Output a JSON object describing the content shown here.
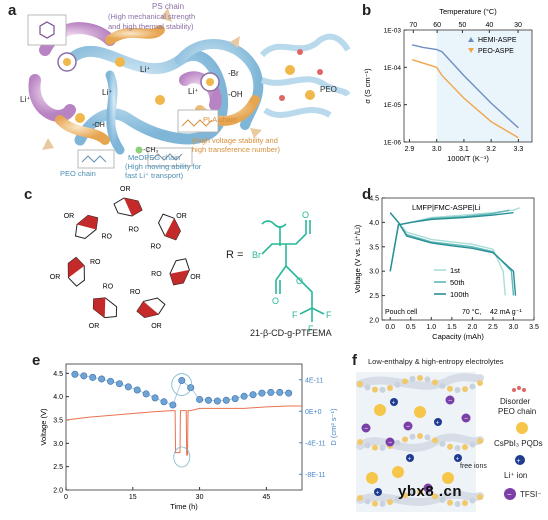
{
  "panels": {
    "a": {
      "letter": "a",
      "ps_chain": "PS chain",
      "ps_desc1": "(High mechanical strength",
      "ps_desc2": "and high thermal stability)",
      "pla_chain": "PLA chain",
      "pla_desc1": "(High voltage stability and",
      "pla_desc2": "high transference number)",
      "meopeg_chain": "MeOPEG chain",
      "meopeg_desc1": "(High moving ability for",
      "meopeg_desc2": "fast Li⁺ transport)",
      "peo_chain": "PEO chain",
      "peo_label": "PEO",
      "li_ion": "Li⁺",
      "br_label": "-Br",
      "oh_label": "-OH",
      "ch3_label": "-CH₃"
    },
    "b": {
      "letter": "b"
    },
    "c": {
      "letter": "c",
      "r_eq": "R =",
      "caption": "21-β-CD-g-PTFEMA",
      "or": "OR",
      "ro": "RO",
      "o": "O",
      "br": "Br",
      "f": "F"
    },
    "d": {
      "letter": "d"
    },
    "e": {
      "letter": "e"
    },
    "f": {
      "letter": "f",
      "title": "Low-enthalpy & high-entropy electrolytes",
      "legend": [
        "Disorder",
        "PEO chain",
        "CsPbI₃ PQDs",
        "Li⁺ ion",
        "TFSI⁻"
      ],
      "free_ions": "free ions"
    }
  },
  "watermark": "ybx8 .cn",
  "chart_data": [
    {
      "id": "b",
      "type": "line",
      "xlabel": "1000/T (K⁻¹)",
      "ylabel": "σ (S cm⁻¹)",
      "x2label": "Temperature (°C)",
      "xlim": [
        2.88,
        3.35
      ],
      "ylim_log10": [
        -6,
        -3
      ],
      "y_scale": "log",
      "xticks": [
        2.9,
        3.0,
        3.1,
        3.2,
        3.3
      ],
      "x2ticks": [
        70,
        60,
        50,
        40,
        30
      ],
      "yticks": [
        "1E-06",
        "1E-05",
        "1E-04",
        "1E-03"
      ],
      "legend": "top-right",
      "shaded_region": "1000/T > 3.0",
      "series": [
        {
          "name": "HEMI-ASPE",
          "color": "#6f8fc2",
          "marker": "triangle-up",
          "x": [
            2.91,
            2.95,
            3.0,
            3.02,
            3.1,
            3.2,
            3.3
          ],
          "y": [
            0.0004,
            0.00034,
            0.0003,
            0.00026,
            6e-05,
            1.1e-05,
            2.4e-06
          ]
        },
        {
          "name": "PEO-ASPE",
          "color": "#f0a54a",
          "marker": "triangle-down",
          "x": [
            2.91,
            2.95,
            3.0,
            3.02,
            3.1,
            3.2,
            3.3
          ],
          "y": [
            0.00016,
            0.00013,
            0.0001,
            6e-05,
            1.5e-05,
            3.5e-06,
            1.3e-06
          ]
        }
      ]
    },
    {
      "id": "d",
      "type": "line",
      "title": "LMFP|FMC-ASPE|Li",
      "xlabel": "Capacity (mAh)",
      "ylabel": "Voltage (V vs. Li⁺/Li)",
      "xlim": [
        -0.2,
        3.5
      ],
      "ylim": [
        2.0,
        4.5
      ],
      "xticks": [
        0.0,
        0.5,
        1.0,
        1.5,
        2.0,
        2.5,
        3.0,
        3.5
      ],
      "yticks": [
        2.0,
        2.5,
        3.0,
        3.5,
        4.0,
        4.5
      ],
      "annotations": [
        "Pouch cell",
        "70 °C,",
        "42 mA g⁻¹"
      ],
      "legend": "center-right",
      "series": [
        {
          "name": "1st",
          "color": "#a8ddd8",
          "charge_x": [
            0.0,
            0.2,
            0.5,
            1.0,
            1.8,
            2.5,
            3.0,
            3.15
          ],
          "charge_y": [
            3.0,
            3.95,
            4.0,
            4.1,
            4.15,
            4.2,
            4.25,
            4.3
          ],
          "discharge_x": [
            0.0,
            0.2,
            0.4,
            1.0,
            1.5,
            2.0,
            2.5,
            2.75,
            2.8
          ],
          "discharge_y": [
            4.2,
            4.0,
            3.8,
            3.65,
            3.6,
            3.55,
            3.45,
            3.0,
            2.5
          ]
        },
        {
          "name": "50th",
          "color": "#5fb8b8",
          "charge_x": [
            0.0,
            0.2,
            0.5,
            1.0,
            1.8,
            2.5,
            2.9
          ],
          "charge_y": [
            3.0,
            3.95,
            4.0,
            4.08,
            4.12,
            4.18,
            4.25
          ],
          "discharge_x": [
            0.0,
            0.2,
            0.4,
            1.0,
            1.5,
            2.0,
            2.5,
            2.95,
            3.0
          ],
          "discharge_y": [
            4.2,
            4.0,
            3.75,
            3.6,
            3.55,
            3.5,
            3.4,
            3.0,
            2.5
          ]
        },
        {
          "name": "100th",
          "color": "#2a8f95",
          "charge_x": [
            0.0,
            0.2,
            0.5,
            1.0,
            1.8,
            2.5,
            3.0
          ],
          "charge_y": [
            3.0,
            3.95,
            4.0,
            4.06,
            4.1,
            4.15,
            4.2
          ],
          "discharge_x": [
            0.0,
            0.2,
            0.4,
            1.0,
            1.5,
            2.0,
            2.5,
            3.0,
            3.05
          ],
          "discharge_y": [
            4.2,
            4.0,
            3.72,
            3.58,
            3.52,
            3.47,
            3.38,
            3.0,
            2.5
          ]
        }
      ]
    },
    {
      "id": "e",
      "type": "line",
      "xlabel": "Time (h)",
      "ylabel": "Voltage (V)",
      "y2label": "D (cm² s⁻¹)",
      "xlim": [
        0,
        53
      ],
      "ylim": [
        2.0,
        4.7
      ],
      "y2lim": [
        -1e-10,
        6e-11
      ],
      "xticks": [
        0,
        15,
        30,
        45
      ],
      "yticks": [
        2.0,
        2.5,
        3.0,
        3.5,
        4.0,
        4.5
      ],
      "y2ticks": [
        "-8E-11",
        "-4E-11",
        "0E+0",
        "4E-11"
      ],
      "series": [
        {
          "name": "Voltage",
          "axis": "left",
          "color": "#e8734f",
          "x": [
            0,
            5,
            10,
            15,
            20,
            24,
            24.5,
            24.6,
            25.6,
            25.7,
            27.0,
            27.1,
            27.3,
            27.4,
            28.0,
            30,
            35,
            40,
            45,
            50,
            53
          ],
          "y": [
            3.5,
            3.56,
            3.6,
            3.64,
            3.68,
            3.7,
            3.7,
            2.8,
            2.8,
            3.7,
            3.7,
            2.75,
            2.75,
            3.7,
            3.7,
            3.75,
            3.75,
            3.75,
            3.78,
            3.8,
            3.8
          ]
        },
        {
          "name": "D",
          "axis": "right",
          "color": "#6fa3d3",
          "marker": "circle",
          "x": [
            2,
            4,
            6,
            8,
            10,
            12,
            14,
            16,
            18,
            20,
            22,
            24,
            26,
            28,
            30,
            32,
            34,
            36,
            38,
            40,
            42,
            44,
            46,
            48,
            50
          ],
          "y": [
            4.7e-11,
            4.5e-11,
            4.3e-11,
            4.1e-11,
            3.8e-11,
            3.5e-11,
            3.1e-11,
            2.7e-11,
            2.2e-11,
            1.7e-11,
            1.2e-11,
            8e-12,
            3.9e-11,
            3e-11,
            1.5e-11,
            1.4e-11,
            1.3e-11,
            1.4e-11,
            1.6e-11,
            1.9e-11,
            2.1e-11,
            2.3e-11,
            2.4e-11,
            2.4e-11,
            2.3e-11
          ]
        }
      ]
    }
  ]
}
